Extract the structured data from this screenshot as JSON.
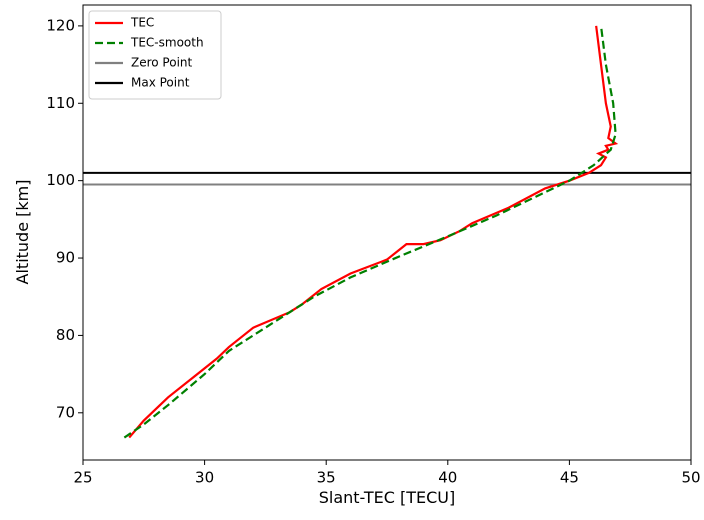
{
  "chart_data": {
    "type": "line",
    "xlabel": "Slant-TEC [TECU]",
    "ylabel": "Altitude [km]",
    "xlim": [
      25,
      50
    ],
    "xticks": [
      25,
      30,
      35,
      40,
      45,
      50
    ],
    "ylim": [
      63.9,
      122.7
    ],
    "yticks": [
      70,
      80,
      90,
      100,
      110,
      120
    ],
    "legend": "upper left",
    "series": [
      {
        "name": "TEC",
        "color": "#ff0000",
        "dash": "solid",
        "x": [
          26.9,
          27.5,
          28.5,
          29.5,
          30.5,
          31,
          32,
          33.5,
          34,
          34.8,
          36,
          37.5,
          38.3,
          39,
          39.7,
          40.5,
          41,
          42.5,
          44,
          45,
          45.8,
          46.3,
          46.5,
          46.2,
          46.6,
          46.5,
          46.9,
          46.6,
          46.7,
          46.5,
          46.3,
          46.1
        ],
        "values": [
          66.8,
          69,
          72,
          74.5,
          77,
          78.5,
          81,
          83,
          84,
          86,
          88,
          89.8,
          91.8,
          91.8,
          92.3,
          93.5,
          94.5,
          96.5,
          99,
          100,
          101,
          102,
          103,
          103.5,
          104,
          104.5,
          104.8,
          105.5,
          107,
          110,
          115,
          120
        ]
      },
      {
        "name": "TEC-smooth",
        "color": "#008000",
        "dash": "dashed",
        "x": [
          26.7,
          27.5,
          28.5,
          30,
          31,
          32.5,
          34.5,
          36,
          38,
          40,
          42,
          44,
          45,
          46,
          46.7,
          46.9,
          46.8,
          46.5,
          46.3
        ],
        "values": [
          66.8,
          68.5,
          71,
          75,
          78,
          81,
          85,
          87.5,
          90.2,
          92.8,
          95.5,
          98.5,
          100,
          102,
          104,
          106,
          110,
          115,
          120
        ]
      }
    ],
    "hlines": [
      {
        "name": "Zero Point",
        "color": "#808080",
        "value": 99.5
      },
      {
        "name": "Max Point",
        "color": "#000000",
        "value": 101
      }
    ]
  }
}
